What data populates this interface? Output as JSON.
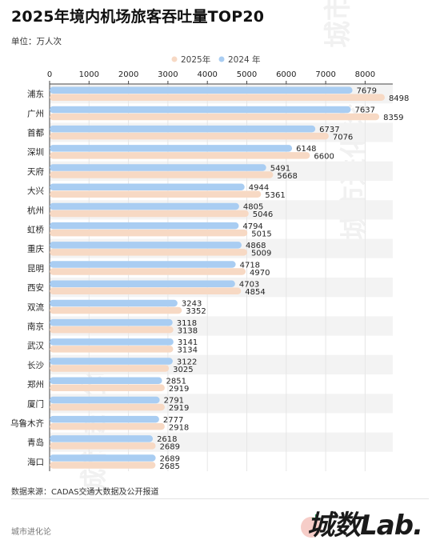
{
  "title": "2025年境内机场旅客吞吐量TOP20",
  "unit_label": "单位：万人次",
  "source": "数据来源：CADAS交通大数据及公开报道",
  "author": "城市进化论",
  "brand": "城数Lab.",
  "watermark": "城市进化论",
  "watermark_en": "URBAN EVOLUTION",
  "colors": {
    "y2025": "#f7d9c4",
    "y2024": "#a9cdf2",
    "axis": "#444444",
    "grid": "#e6e6e6",
    "band": "#f3f3f3"
  },
  "chart_data": {
    "type": "bar",
    "orientation": "horizontal",
    "xlim": [
      0,
      8700
    ],
    "xticks": [
      0,
      1000,
      2000,
      3000,
      4000,
      5000,
      6000,
      7000,
      8000
    ],
    "legend_position": "top-center",
    "categories": [
      "浦东",
      "广州",
      "首都",
      "深圳",
      "天府",
      "大兴",
      "杭州",
      "虹桥",
      "重庆",
      "昆明",
      "西安",
      "双流",
      "南京",
      "武汉",
      "长沙",
      "郑州",
      "厦门",
      "乌鲁木齐",
      "青岛",
      "海口"
    ],
    "series": [
      {
        "name": "2024 年",
        "color": "#a9cdf2",
        "values": [
          7679,
          7637,
          6737,
          6148,
          5491,
          4944,
          4805,
          4794,
          4868,
          4718,
          4703,
          3243,
          3118,
          3141,
          3122,
          2851,
          2791,
          2777,
          2618,
          2689
        ]
      },
      {
        "name": "2025年",
        "color": "#f7d9c4",
        "values": [
          8498,
          8359,
          7076,
          6600,
          5668,
          5361,
          5046,
          5015,
          5009,
          4970,
          4854,
          3352,
          3138,
          3134,
          3025,
          2919,
          2919,
          2918,
          2689,
          2685
        ]
      }
    ],
    "legend": [
      "2025年",
      "2024 年"
    ]
  }
}
